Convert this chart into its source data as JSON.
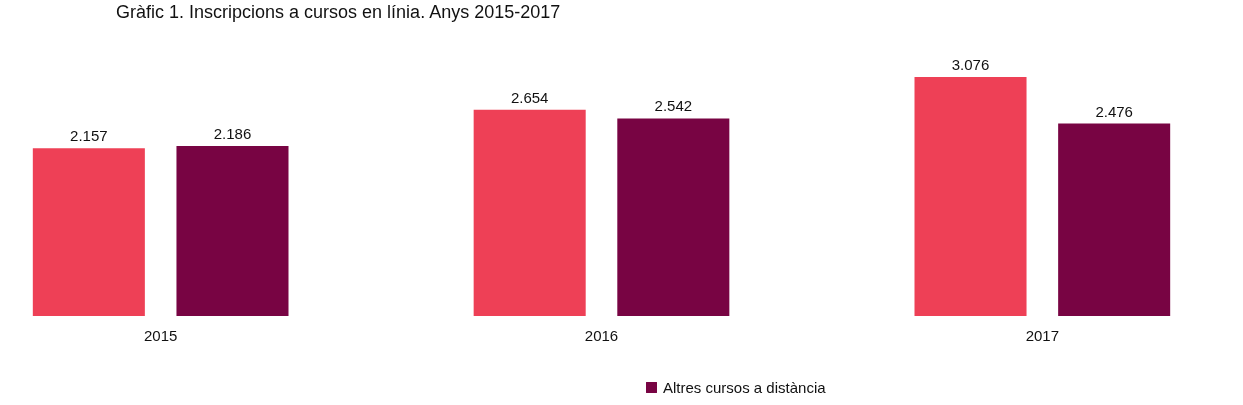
{
  "chart_data": {
    "type": "bar",
    "title": "Gràfic 1. Inscripcions a cursos en línia. Anys 2015-2017",
    "categories": [
      "2015",
      "2016",
      "2017"
    ],
    "series": [
      {
        "color": "#ee4056",
        "values": [
          2157,
          2654,
          3076
        ],
        "value_labels": [
          "2.157",
          "2.654",
          "3.076"
        ]
      },
      {
        "name": "Altres cursos a distància",
        "color": "#780443",
        "values": [
          2186,
          2542,
          2476
        ],
        "value_labels": [
          "2.186",
          "2.542",
          "2.476"
        ]
      }
    ],
    "legend": "bottom"
  }
}
